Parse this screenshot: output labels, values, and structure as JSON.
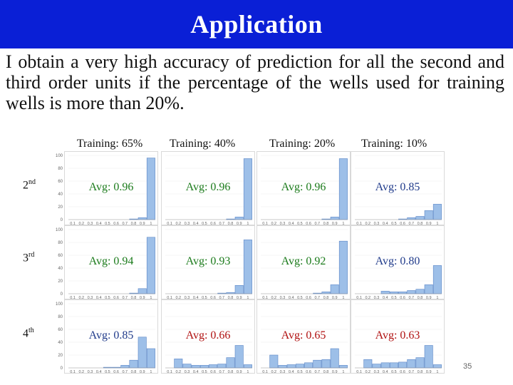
{
  "title": "Application",
  "body_text": "I obtain a very high accuracy of prediction for all the second and third order units if the percentage of the wells used for training wells is more than 20%.",
  "columns": [
    {
      "label": "Training: 65%"
    },
    {
      "label": "Training: 40%"
    },
    {
      "label": "Training: 20%"
    },
    {
      "label": "Training: 10%"
    }
  ],
  "rows": [
    {
      "label_main": "2",
      "label_sup": "nd"
    },
    {
      "label_main": "3",
      "label_sup": "rd"
    },
    {
      "label_main": "4",
      "label_sup": "th"
    }
  ],
  "page_number": "35",
  "colors": {
    "title_bg": "#0a1fd6",
    "bar_fill": "#9dbfe8",
    "bar_stroke": "#5b86c6",
    "avg_high": "#1a7a1a",
    "avg_mid": "#1f3a8a",
    "avg_low": "#b01010"
  },
  "chart_data": [
    {
      "type": "bar",
      "row": "2nd",
      "col": "Training: 65%",
      "ylim": [
        0,
        100
      ],
      "yticks": [
        "100",
        "80",
        "60",
        "40",
        "20",
        "0"
      ],
      "x": [
        "0.1",
        "0.2",
        "0.3",
        "0.4",
        "0.5",
        "0.6",
        "0.7",
        "0.8",
        "0.9",
        "1"
      ],
      "values": [
        0,
        0,
        0,
        0,
        0,
        0,
        0,
        1,
        3,
        96
      ],
      "annotation": "Avg: 0.96",
      "avg_color": "avg_high"
    },
    {
      "type": "bar",
      "row": "2nd",
      "col": "Training: 40%",
      "ylim": [
        0,
        100
      ],
      "x": [
        "0.1",
        "0.2",
        "0.3",
        "0.4",
        "0.5",
        "0.6",
        "0.7",
        "0.8",
        "0.9",
        "1"
      ],
      "values": [
        0,
        0,
        0,
        0,
        0,
        0,
        0,
        1,
        4,
        95
      ],
      "annotation": "Avg: 0.96",
      "avg_color": "avg_high"
    },
    {
      "type": "bar",
      "row": "2nd",
      "col": "Training: 20%",
      "ylim": [
        0,
        100
      ],
      "x": [
        "0.1",
        "0.2",
        "0.3",
        "0.4",
        "0.5",
        "0.6",
        "0.7",
        "0.8",
        "0.9",
        "1"
      ],
      "values": [
        0,
        0,
        0,
        0,
        0,
        0,
        0,
        1,
        4,
        95
      ],
      "annotation": "Avg: 0.96",
      "avg_color": "avg_high"
    },
    {
      "type": "bar",
      "row": "2nd",
      "col": "Training: 10%",
      "ylim": [
        0,
        100
      ],
      "x": [
        "0.1",
        "0.2",
        "0.3",
        "0.4",
        "0.5",
        "0.6",
        "0.7",
        "0.8",
        "0.9",
        "1"
      ],
      "values": [
        0,
        0,
        0,
        0,
        0,
        1,
        3,
        5,
        14,
        24
      ],
      "annotation": "Avg: 0.85",
      "avg_color": "avg_mid"
    },
    {
      "type": "bar",
      "row": "3rd",
      "col": "Training: 65%",
      "ylim": [
        0,
        100
      ],
      "yticks": [
        "100",
        "80",
        "60",
        "40",
        "20",
        "0"
      ],
      "x": [
        "0.1",
        "0.2",
        "0.3",
        "0.4",
        "0.5",
        "0.6",
        "0.7",
        "0.8",
        "0.9",
        "1"
      ],
      "values": [
        0,
        0,
        0,
        0,
        0,
        0,
        0,
        1,
        8,
        88
      ],
      "annotation": "Avg: 0.94",
      "avg_color": "avg_high"
    },
    {
      "type": "bar",
      "row": "3rd",
      "col": "Training: 40%",
      "ylim": [
        0,
        100
      ],
      "x": [
        "0.1",
        "0.2",
        "0.3",
        "0.4",
        "0.5",
        "0.6",
        "0.7",
        "0.8",
        "0.9",
        "1"
      ],
      "values": [
        0,
        0,
        0,
        0,
        0,
        0,
        1,
        2,
        13,
        84
      ],
      "annotation": "Avg: 0.93",
      "avg_color": "avg_high"
    },
    {
      "type": "bar",
      "row": "3rd",
      "col": "Training: 20%",
      "ylim": [
        0,
        100
      ],
      "x": [
        "0.1",
        "0.2",
        "0.3",
        "0.4",
        "0.5",
        "0.6",
        "0.7",
        "0.8",
        "0.9",
        "1"
      ],
      "values": [
        0,
        0,
        0,
        0,
        0,
        0,
        1,
        3,
        14,
        82
      ],
      "annotation": "Avg: 0.92",
      "avg_color": "avg_high"
    },
    {
      "type": "bar",
      "row": "3rd",
      "col": "Training: 10%",
      "ylim": [
        0,
        100
      ],
      "x": [
        "0.1",
        "0.2",
        "0.3",
        "0.4",
        "0.5",
        "0.6",
        "0.7",
        "0.8",
        "0.9",
        "1"
      ],
      "values": [
        0,
        0,
        0,
        4,
        3,
        3,
        5,
        7,
        14,
        44
      ],
      "annotation": "Avg: 0.80",
      "avg_color": "avg_mid"
    },
    {
      "type": "bar",
      "row": "4th",
      "col": "Training: 65%",
      "ylim": [
        0,
        100
      ],
      "yticks": [
        "100",
        "80",
        "60",
        "40",
        "20",
        "0"
      ],
      "x": [
        "0.1",
        "0.2",
        "0.3",
        "0.4",
        "0.5",
        "0.6",
        "0.7",
        "0.8",
        "0.9",
        "1"
      ],
      "values": [
        0,
        0,
        0,
        0,
        1,
        1,
        4,
        12,
        48,
        30
      ],
      "annotation": "Avg: 0.85",
      "avg_color": "avg_mid"
    },
    {
      "type": "bar",
      "row": "4th",
      "col": "Training: 40%",
      "ylim": [
        0,
        100
      ],
      "x": [
        "0.1",
        "0.2",
        "0.3",
        "0.4",
        "0.5",
        "0.6",
        "0.7",
        "0.8",
        "0.9",
        "1"
      ],
      "values": [
        0,
        14,
        6,
        4,
        4,
        5,
        6,
        16,
        35,
        5
      ],
      "annotation": "Avg: 0.66",
      "avg_color": "avg_low"
    },
    {
      "type": "bar",
      "row": "4th",
      "col": "Training: 20%",
      "ylim": [
        0,
        100
      ],
      "x": [
        "0.1",
        "0.2",
        "0.3",
        "0.4",
        "0.5",
        "0.6",
        "0.7",
        "0.8",
        "0.9",
        "1"
      ],
      "values": [
        0,
        20,
        4,
        5,
        6,
        8,
        12,
        13,
        30,
        4
      ],
      "annotation": "Avg: 0.65",
      "avg_color": "avg_low"
    },
    {
      "type": "bar",
      "row": "4th",
      "col": "Training: 10%",
      "ylim": [
        0,
        100
      ],
      "x": [
        "0.1",
        "0.2",
        "0.3",
        "0.4",
        "0.5",
        "0.6",
        "0.7",
        "0.8",
        "0.9",
        "1"
      ],
      "values": [
        0,
        13,
        6,
        8,
        8,
        9,
        13,
        16,
        35,
        5
      ],
      "annotation": "Avg: 0.63",
      "avg_color": "avg_low"
    }
  ]
}
